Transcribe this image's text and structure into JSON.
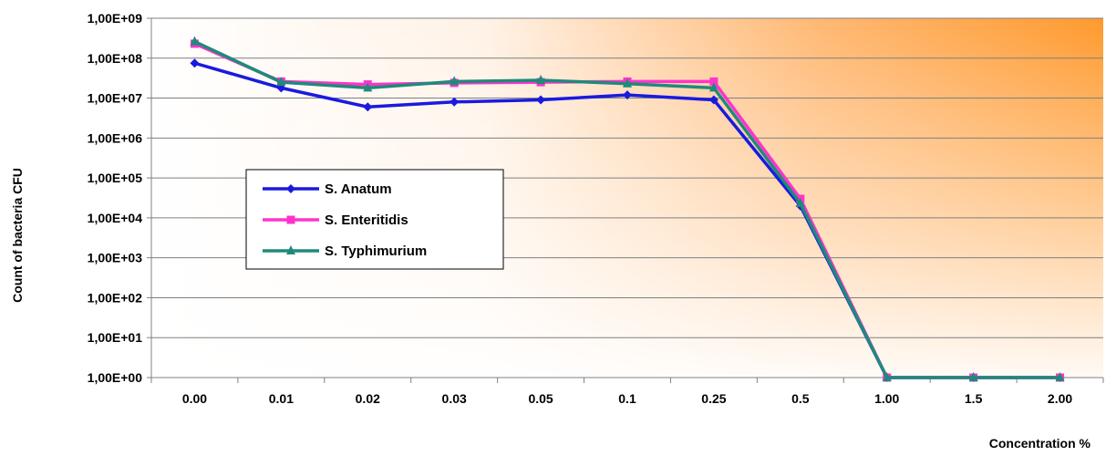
{
  "chart_data": {
    "type": "line",
    "title": "",
    "xlabel": "Concentration %",
    "ylabel": "Count of bacteria CFU",
    "y_scale": "log",
    "ylim": [
      1,
      1000000000
    ],
    "y_ticks": [
      "1,00E+00",
      "1,00E+01",
      "1,00E+02",
      "1,00E+03",
      "1,00E+04",
      "1,00E+05",
      "1,00E+06",
      "1,00E+07",
      "1,00E+08",
      "1,00E+09"
    ],
    "categories": [
      "0.00",
      "0.01",
      "0.02",
      "0.03",
      "0.05",
      "0.1",
      "0.25",
      "0.5",
      "1.00",
      "1.5",
      "2.00"
    ],
    "grid": true,
    "legend_position": "left",
    "background": "gradient fading from orange at top-right to white at left",
    "series": [
      {
        "name": "S. Anatum",
        "color": "#1a1adf",
        "marker": "diamond",
        "values": [
          75000000,
          18000000,
          6000000,
          8000000,
          9000000,
          12000000,
          9000000,
          20000,
          1,
          1,
          1
        ]
      },
      {
        "name": "S. Enteritidis",
        "color": "#ff33cc",
        "marker": "square",
        "values": [
          230000000,
          26000000,
          22000000,
          24000000,
          25000000,
          26000000,
          26000000,
          30000,
          1,
          1,
          1
        ]
      },
      {
        "name": "S. Typhimurium",
        "color": "#1f8a7a",
        "marker": "triangle",
        "values": [
          260000000,
          25000000,
          18000000,
          26000000,
          28000000,
          23000000,
          18000000,
          23000,
          1,
          1,
          1
        ]
      }
    ]
  }
}
